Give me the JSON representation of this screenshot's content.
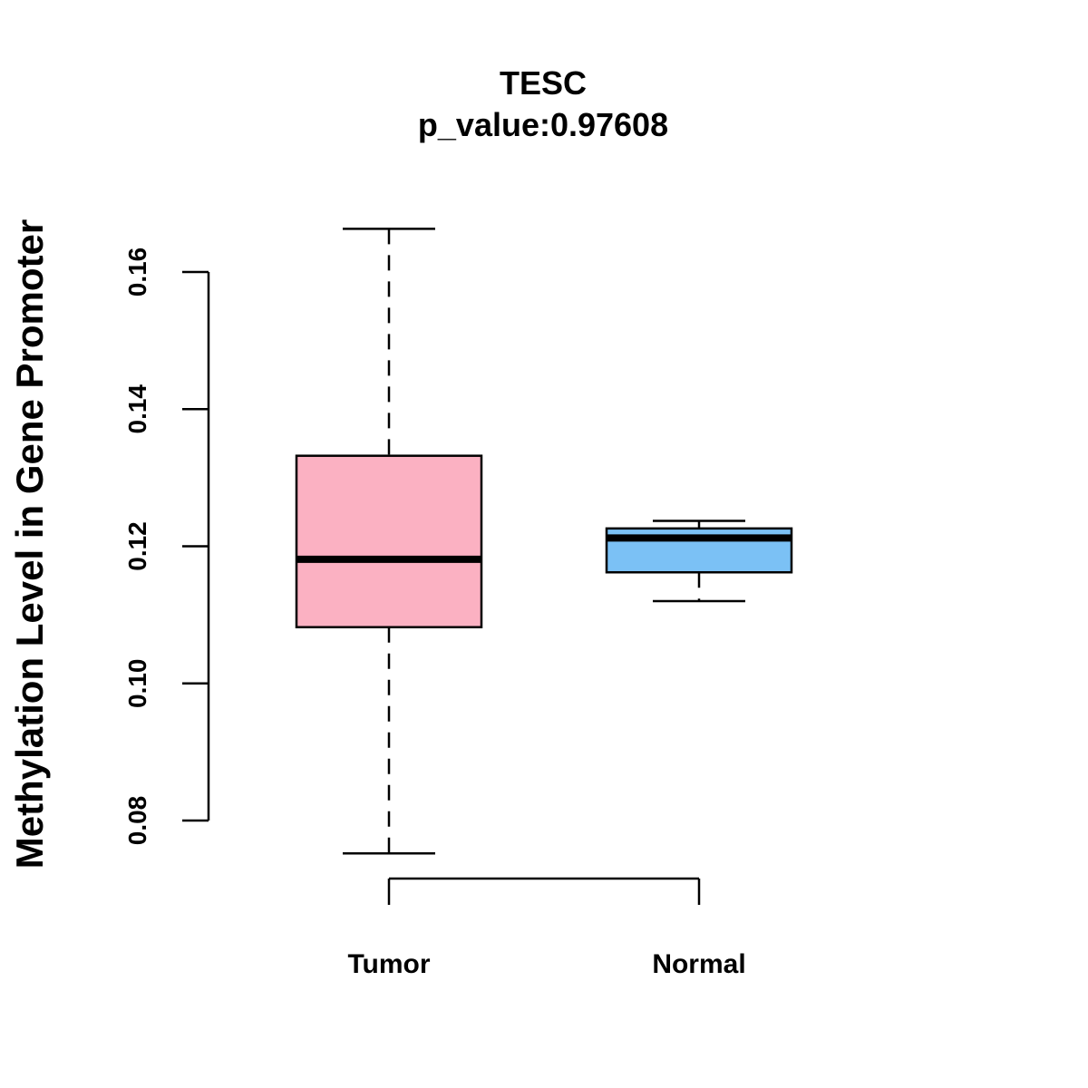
{
  "chart_data": {
    "type": "boxplot",
    "title": "TESC",
    "subtitle": "p_value:0.97608",
    "xlabel": "",
    "ylabel": "Methylation Level in Gene Promoter",
    "ylim": [
      0.07,
      0.172
    ],
    "yticks": [
      0.08,
      0.1,
      0.12,
      0.14,
      0.16
    ],
    "ytick_labels": [
      "0.08",
      "0.10",
      "0.12",
      "0.14",
      "0.16"
    ],
    "categories": [
      "Tumor",
      "Normal"
    ],
    "boxes": [
      {
        "name": "Tumor",
        "min": 0.0752,
        "q1": 0.1082,
        "median": 0.1181,
        "q3": 0.1332,
        "max": 0.1663,
        "color": "#FBB1C2"
      },
      {
        "name": "Normal",
        "min": 0.112,
        "q1": 0.1162,
        "median": 0.1212,
        "q3": 0.1226,
        "max": 0.1237,
        "color": "#7BC1F5"
      }
    ]
  }
}
